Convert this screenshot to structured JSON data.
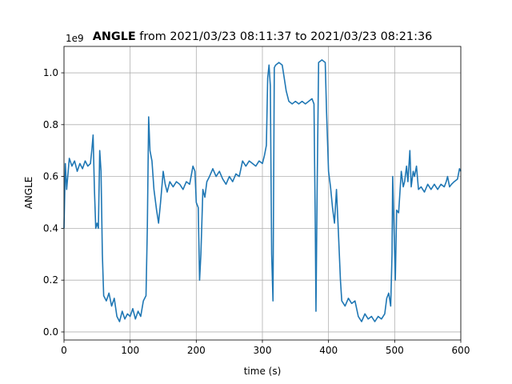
{
  "chart_data": {
    "type": "line",
    "title_bold": "ANGLE",
    "title": "from 2021/03/23 08:11:37 to 2021/03/23 08:21:36",
    "x_label": "time (s)",
    "y_label": "ANGLE",
    "y_offset_label": "1e9",
    "xlim": [
      0,
      600
    ],
    "xticks": [
      0,
      100,
      200,
      300,
      400,
      500,
      600
    ],
    "ylim": [
      -0.031,
      1.102
    ],
    "yticks": [
      {
        "value": 0,
        "label": "0.0"
      },
      {
        "value": 0.2,
        "label": "0.2"
      },
      {
        "value": 0.4,
        "label": "0.4"
      },
      {
        "value": 0.6,
        "label": "0.6"
      },
      {
        "value": 0.8,
        "label": "0.8"
      },
      {
        "value": 1.0,
        "label": "1.0"
      }
    ],
    "grid": true,
    "series": [
      {
        "color": "#1f77b4",
        "x": [
          0,
          2,
          4,
          8,
          12,
          16,
          20,
          24,
          28,
          32,
          36,
          40,
          42,
          44,
          46,
          48,
          50,
          52,
          54,
          56,
          58,
          60,
          64,
          68,
          72,
          76,
          80,
          84,
          88,
          92,
          96,
          100,
          104,
          108,
          112,
          116,
          120,
          124,
          126,
          128,
          130,
          133,
          136,
          140,
          143,
          146,
          150,
          153,
          156,
          160,
          165,
          170,
          175,
          180,
          185,
          190,
          195,
          198,
          200,
          203,
          205,
          207,
          210,
          213,
          216,
          220,
          225,
          230,
          235,
          240,
          245,
          250,
          255,
          260,
          265,
          270,
          275,
          280,
          285,
          290,
          295,
          300,
          303,
          306,
          308,
          310,
          312,
          314,
          316,
          318,
          320,
          325,
          330,
          333,
          336,
          340,
          345,
          350,
          355,
          360,
          365,
          370,
          375,
          378,
          380,
          381,
          383,
          385,
          390,
          395,
          397,
          400,
          403,
          406,
          409,
          412,
          415,
          418,
          420,
          425,
          430,
          435,
          440,
          445,
          450,
          455,
          460,
          465,
          470,
          475,
          480,
          485,
          488,
          491,
          494,
          496,
          497,
          499,
          501,
          503,
          506,
          510,
          513,
          515,
          518,
          520,
          523,
          525,
          528,
          530,
          533,
          536,
          540,
          545,
          550,
          555,
          560,
          565,
          570,
          575,
          578,
          580,
          583,
          586,
          590,
          595,
          598,
          600
        ],
        "values": [
          0.4,
          0.65,
          0.55,
          0.67,
          0.64,
          0.66,
          0.62,
          0.65,
          0.63,
          0.66,
          0.64,
          0.65,
          0.7,
          0.76,
          0.55,
          0.4,
          0.42,
          0.4,
          0.7,
          0.62,
          0.3,
          0.14,
          0.12,
          0.15,
          0.1,
          0.13,
          0.06,
          0.04,
          0.08,
          0.05,
          0.07,
          0.06,
          0.09,
          0.05,
          0.08,
          0.06,
          0.12,
          0.14,
          0.4,
          0.83,
          0.7,
          0.66,
          0.55,
          0.47,
          0.42,
          0.5,
          0.62,
          0.57,
          0.54,
          0.58,
          0.56,
          0.58,
          0.57,
          0.55,
          0.58,
          0.57,
          0.64,
          0.62,
          0.5,
          0.48,
          0.2,
          0.3,
          0.55,
          0.52,
          0.58,
          0.6,
          0.63,
          0.6,
          0.62,
          0.59,
          0.57,
          0.6,
          0.58,
          0.61,
          0.6,
          0.66,
          0.64,
          0.66,
          0.65,
          0.64,
          0.66,
          0.65,
          0.68,
          0.72,
          0.98,
          1.03,
          0.95,
          0.3,
          0.12,
          1.02,
          1.03,
          1.04,
          1.03,
          0.98,
          0.93,
          0.89,
          0.88,
          0.89,
          0.88,
          0.89,
          0.88,
          0.89,
          0.9,
          0.88,
          0.4,
          0.08,
          0.6,
          1.04,
          1.05,
          1.04,
          0.85,
          0.62,
          0.56,
          0.48,
          0.42,
          0.55,
          0.38,
          0.2,
          0.12,
          0.1,
          0.13,
          0.11,
          0.12,
          0.06,
          0.04,
          0.07,
          0.05,
          0.06,
          0.04,
          0.06,
          0.05,
          0.07,
          0.13,
          0.15,
          0.1,
          0.3,
          0.6,
          0.4,
          0.2,
          0.47,
          0.46,
          0.62,
          0.56,
          0.58,
          0.64,
          0.58,
          0.7,
          0.56,
          0.62,
          0.6,
          0.64,
          0.55,
          0.56,
          0.54,
          0.57,
          0.55,
          0.57,
          0.55,
          0.57,
          0.56,
          0.58,
          0.6,
          0.56,
          0.57,
          0.58,
          0.59,
          0.63,
          0.62
        ]
      }
    ]
  }
}
